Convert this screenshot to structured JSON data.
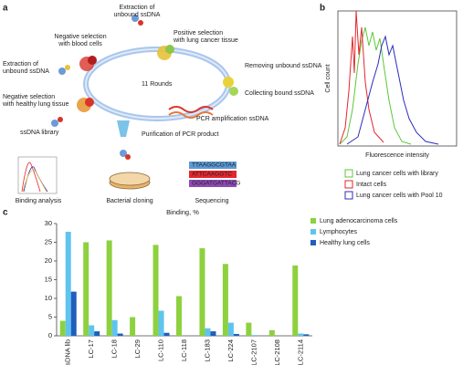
{
  "panel_a": {
    "label": "a",
    "round_label": "11 Rounds",
    "steps": [
      {
        "lines": [
          "Extraction of",
          "unbound ssDNA"
        ]
      },
      {
        "lines": [
          "Negative selection",
          "with blood cells"
        ]
      },
      {
        "lines": [
          "Positive selection",
          "with lung cancer tissue"
        ]
      },
      {
        "lines": [
          "Extraction of",
          "unbound ssDNA"
        ]
      },
      {
        "lines": [
          "Removing unbound ssDNA"
        ]
      },
      {
        "lines": [
          "Collecting bound ssDNA"
        ]
      },
      {
        "lines": [
          "Negative selection",
          "with healthy lung tissue"
        ]
      },
      {
        "lines": [
          "PCR amplification ssDNA"
        ]
      },
      {
        "lines": [
          "ssDNA library"
        ]
      },
      {
        "lines": [
          "Purification of PCR product"
        ]
      },
      {
        "lines": [
          "Binding analysis"
        ]
      },
      {
        "lines": [
          "Bacterial cloning"
        ]
      },
      {
        "lines": [
          "Sequencing"
        ]
      }
    ],
    "sequences": [
      "TTAAGGCGTAA",
      "ATTCAAGGTC",
      "GGGATGATTACG"
    ]
  },
  "panel_b": {
    "label": "b",
    "y_label": "Cell count",
    "x_label": "Fluorescence intensity",
    "legend": [
      {
        "name": "Lung cancer cells with library",
        "color": "#5cc83a"
      },
      {
        "name": "Intact cells",
        "color": "#e3262d"
      },
      {
        "name": "Lung cancer cells with Pool 10",
        "color": "#2d2dbb"
      }
    ]
  },
  "chart_data": {
    "type": "bar",
    "label": "c",
    "title": "Binding, %",
    "categories": [
      "ssDNA lib",
      "LC-17",
      "LC-18",
      "LC-29",
      "LC-110",
      "LC-118",
      "LC-183",
      "LC-224",
      "LC-2107",
      "LC-2108",
      "LC-2114"
    ],
    "series": [
      {
        "name": "Lung adenocarcinoma cells",
        "color": "#8dd13f",
        "values": [
          4,
          25,
          25.5,
          5,
          24.3,
          10.6,
          23.4,
          19.2,
          3.5,
          1.5,
          18.8
        ]
      },
      {
        "name": "Lymphocytes",
        "color": "#5ec4ee",
        "values": [
          27.8,
          2.8,
          4.2,
          0,
          6.7,
          0,
          2,
          3.5,
          0.2,
          0,
          0.6
        ]
      },
      {
        "name": "Healthy lung cells",
        "color": "#1f5ebd",
        "values": [
          11.8,
          1.2,
          0.6,
          0,
          0.8,
          0,
          1.2,
          0.5,
          0,
          0,
          0.4
        ]
      }
    ],
    "ylim": [
      0,
      30
    ],
    "yticks": [
      0,
      5,
      10,
      15,
      20,
      25,
      30
    ],
    "grid": false
  }
}
